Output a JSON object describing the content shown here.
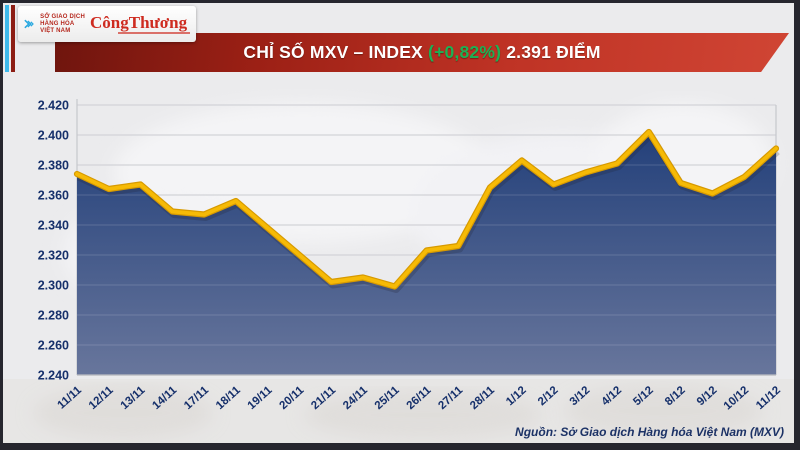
{
  "header": {
    "logo": {
      "mxv_lines": [
        "SỞ GIAO DỊCH",
        "HÀNG HÓA",
        "VIỆT NAM"
      ],
      "congthuong": "CôngThương"
    },
    "banner": {
      "title_main": "CHỈ SỐ MXV – INDEX ",
      "title_change": "(+0,82%)",
      "title_value": " 2.391 ĐIỂM",
      "change_color": "#1db154",
      "banner_color": "#bf3325"
    }
  },
  "chart_data": {
    "type": "area",
    "title": "CHỈ SỐ MXV – INDEX",
    "categories": [
      "11/11",
      "12/11",
      "13/11",
      "14/11",
      "17/11",
      "18/11",
      "19/11",
      "20/11",
      "21/11",
      "24/11",
      "25/11",
      "26/11",
      "27/11",
      "28/11",
      "1/12",
      "2/12",
      "3/12",
      "4/12",
      "5/12",
      "8/12",
      "9/12",
      "10/12",
      "11/12"
    ],
    "values": [
      2374,
      2364,
      2367,
      2349,
      2347,
      2356,
      2338,
      2320,
      2302,
      2305,
      2299,
      2323,
      2326,
      2365,
      2383,
      2367,
      2375,
      2381,
      2402,
      2368,
      2361,
      2372,
      2391
    ],
    "unit": "điểm",
    "ylim": [
      2240,
      2420
    ],
    "y_tick_labels": [
      "2.420",
      "2.400",
      "2.380",
      "2.360",
      "2.340",
      "2.320",
      "2.300",
      "2.280",
      "2.260",
      "2.240"
    ],
    "grid": true,
    "legend": "none",
    "line_color": "#f6ba06",
    "line_edge_color": "#d79a00",
    "area_top_color": "#23407a",
    "area_bottom_color": "#68769c",
    "axis_label_color": "#16306b",
    "gridline_color": "#d2d3d8"
  },
  "footer": {
    "source": "Nguồn: Sở Giao dịch Hàng hóa Việt Nam (MXV)"
  }
}
